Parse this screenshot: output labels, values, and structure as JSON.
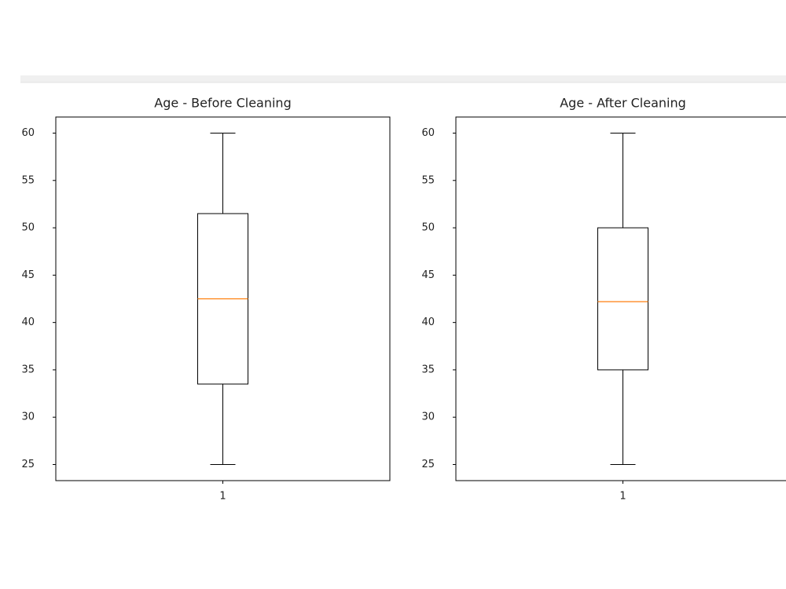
{
  "chart_data": [
    {
      "type": "box",
      "title": "Age - Before Cleaning",
      "xlim": [
        0.5,
        1.5
      ],
      "xticks": [
        1
      ],
      "ylim": [
        23.3,
        61.7
      ],
      "yticks": [
        25,
        30,
        35,
        40,
        45,
        50,
        55,
        60
      ],
      "boxes": [
        {
          "x": 1,
          "min": 25,
          "q1": 33.5,
          "median": 42.5,
          "q3": 51.5,
          "max": 60
        }
      ],
      "box_color": "#000000",
      "median_color": "#ff7f0e"
    },
    {
      "type": "box",
      "title": "Age - After Cleaning",
      "xlim": [
        0.5,
        1.5
      ],
      "xticks": [
        1
      ],
      "ylim": [
        23.3,
        61.7
      ],
      "yticks": [
        25,
        30,
        35,
        40,
        45,
        50,
        55,
        60
      ],
      "boxes": [
        {
          "x": 1,
          "min": 25,
          "q1": 35,
          "median": 42.2,
          "q3": 50,
          "max": 60
        }
      ],
      "box_color": "#000000",
      "median_color": "#ff7f0e"
    }
  ]
}
